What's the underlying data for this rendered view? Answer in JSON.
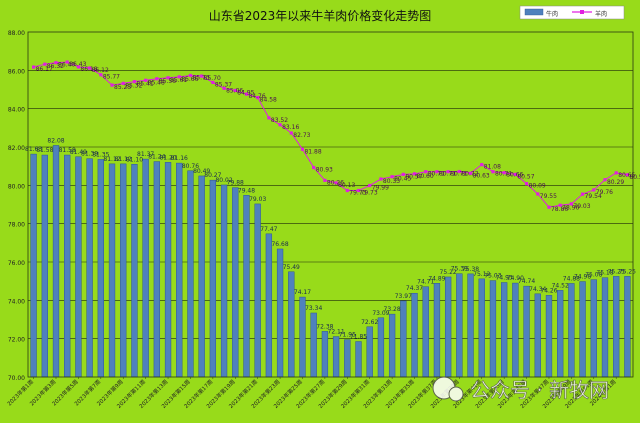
{
  "chart_data": {
    "type": "bar+line",
    "title": "山东省2023年以来牛羊肉价格变化走势图",
    "ylim": [
      70,
      88
    ],
    "yticks": [
      "70.00",
      "72.00",
      "74.00",
      "76.00",
      "78.00",
      "80.00",
      "82.00",
      "84.00",
      "86.00",
      "88.00"
    ],
    "grid": true,
    "legend": "top-right",
    "watermark": "公众号 · 新牧网",
    "x_labels": [
      "2023年第1周",
      "2023年第3周",
      "2023年第5周",
      "2023年第7周",
      "2023年第9周",
      "2023年第11周",
      "2023年第13周",
      "2023年第15周",
      "2023年第17周",
      "2023年第19周",
      "2023年第21周",
      "2023年第23周",
      "2023年第25周",
      "2023年第27周",
      "2023年第29周",
      "2023年第31周",
      "2023年第33周",
      "2023年第35周",
      "2023年第37周",
      "2023年第39周",
      "2023年第41周",
      "2023年第43周",
      "2023年第45周",
      "2023年第47周",
      "2023年第49周",
      "2023年第51周",
      "2024年第1周"
    ],
    "series": [
      {
        "name": "牛肉",
        "kind": "bar",
        "color": "#4f81bd",
        "values": [
          81.63,
          81.58,
          82.08,
          81.58,
          81.49,
          81.39,
          81.35,
          81.12,
          81.12,
          81.1,
          81.37,
          81.24,
          81.2,
          81.16,
          80.76,
          80.49,
          80.27,
          80.02,
          79.88,
          79.48,
          79.03,
          77.47,
          76.68,
          75.49,
          74.17,
          73.34,
          72.38,
          72.11,
          71.95,
          71.85,
          72.62,
          73.09,
          73.28,
          73.97,
          74.37,
          74.71,
          74.89,
          75.22,
          75.39,
          75.38,
          75.12,
          75.03,
          74.93,
          74.9,
          74.74,
          74.34,
          74.26,
          74.52,
          74.88,
          74.98,
          75.08,
          75.18,
          75.25,
          75.25
        ]
      },
      {
        "name": "羊肉",
        "kind": "line",
        "color": "#e020e0",
        "values": [
          86.17,
          86.32,
          86.4,
          86.43,
          86.18,
          86.12,
          85.77,
          85.23,
          85.32,
          85.41,
          85.48,
          85.56,
          85.61,
          85.66,
          85.73,
          85.7,
          85.37,
          85.06,
          84.95,
          84.76,
          84.58,
          83.52,
          83.16,
          82.73,
          81.88,
          80.93,
          80.26,
          80.13,
          79.73,
          79.73,
          79.99,
          80.33,
          80.45,
          80.57,
          80.6,
          80.71,
          80.71,
          80.71,
          80.72,
          80.63,
          81.08,
          80.71,
          80.66,
          80.57,
          80.09,
          79.55,
          78.86,
          78.96,
          79.03,
          79.54,
          79.76,
          80.29,
          80.65,
          80.55
        ]
      }
    ]
  }
}
